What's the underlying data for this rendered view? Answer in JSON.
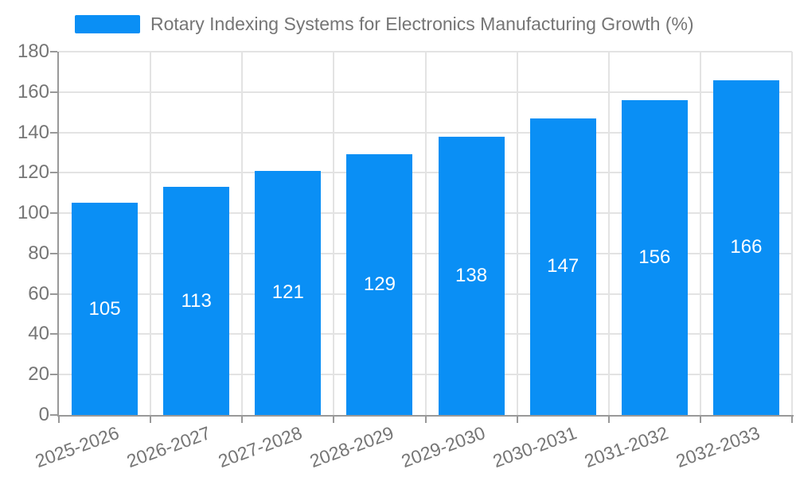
{
  "chart_data": {
    "type": "bar",
    "title": "Rotary Indexing Systems for Electronics Manufacturing Growth (%)",
    "legend": {
      "position": "top-left",
      "label": "Rotary Indexing Systems for Electronics Manufacturing Growth (%)"
    },
    "categories": [
      "2025-2026",
      "2026-2027",
      "2027-2028",
      "2028-2029",
      "2029-2030",
      "2030-2031",
      "2031-2032",
      "2032-2033"
    ],
    "values": [
      105,
      113,
      121,
      129,
      138,
      147,
      156,
      166
    ],
    "xlabel": "",
    "ylabel": "",
    "ylim": [
      0,
      180
    ],
    "ytick_step": 20,
    "yticks": [
      0,
      20,
      40,
      60,
      80,
      100,
      120,
      140,
      160,
      180
    ],
    "grid": true,
    "bar_label_position": "inside-center",
    "x_label_rotation_deg": -20,
    "colors": {
      "bar": "#0a8ff5",
      "bar_label": "#ffffff",
      "axis": "#999999",
      "gridline": "#e3e3e3",
      "tick_text": "#757575",
      "background": "#ffffff"
    }
  }
}
